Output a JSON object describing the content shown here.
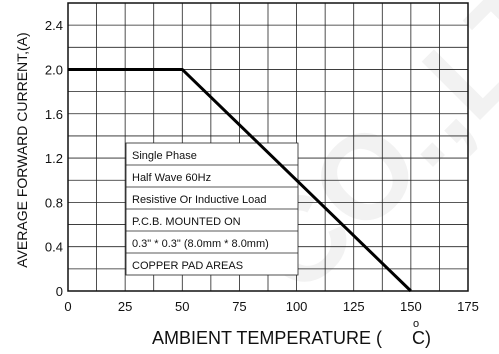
{
  "chart_data": {
    "type": "line",
    "xlabel": "AMBIENT TEMPERATURE (",
    "xlabel_degree": "o",
    "xlabel_unit": "C)",
    "ylabel": "AVERAGE FORWARD CURRENT,(A)",
    "xlim": [
      0,
      175
    ],
    "ylim": [
      0,
      2.6
    ],
    "x_ticks": [
      "0",
      "25",
      "50",
      "75",
      "100",
      "125",
      "150",
      "175"
    ],
    "y_ticks": [
      "0",
      "0.4",
      "0.8",
      "1.2",
      "1.6",
      "2.0",
      "2.4"
    ],
    "grid": true,
    "series": [
      {
        "x": [
          0,
          50,
          150
        ],
        "y": [
          2.0,
          2.0,
          0
        ]
      }
    ],
    "annotations": [
      "Single Phase",
      "Half Wave 60Hz",
      "Resistive Or Inductive Load",
      "P.C.B. MOUNTED ON",
      "0.3\" * 0.3\" (8.0mm * 8.0mm)",
      "COPPER PAD AREAS"
    ],
    "watermark": "CO.,LT"
  }
}
